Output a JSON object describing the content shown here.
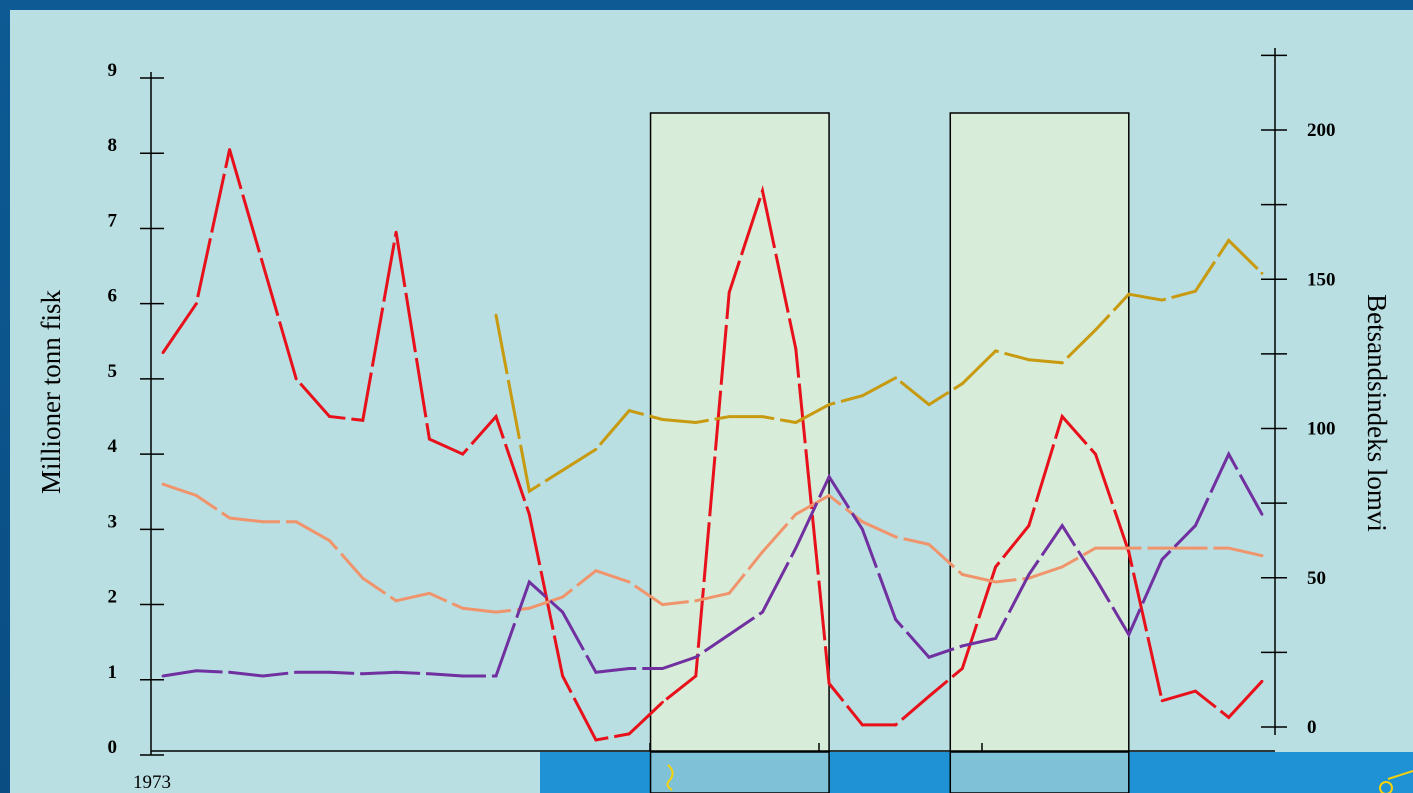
{
  "chart_data": {
    "type": "line",
    "title": "",
    "ylabel": "Millioner  tonn fisk",
    "y2label": "Betsandsindeks lomvi",
    "x_start_label": "1973",
    "ylim": [
      0,
      9
    ],
    "y2lim": [
      0,
      200
    ],
    "yticks": [
      "0",
      "1",
      "2",
      "3",
      "4",
      "5",
      "6",
      "7",
      "8",
      "9"
    ],
    "y2ticks": [
      "0",
      "50",
      "100",
      "150",
      "200"
    ],
    "xlim": [
      1973,
      2006
    ],
    "grid": false,
    "legend": "none",
    "highlight_periods": [
      [
        1988,
        1993
      ],
      [
        1997,
        2002
      ]
    ],
    "series": [
      {
        "color": "#e8101a",
        "axis": "left",
        "x": [
          1973,
          1974,
          1975,
          1977,
          1978,
          1979,
          1980,
          1981,
          1982,
          1983,
          1984,
          1985,
          1986,
          1987,
          1988,
          1989,
          1990,
          1991,
          1992,
          1993,
          1994,
          1995,
          1996,
          1997,
          1998,
          1999,
          2000,
          2001,
          2002,
          2003,
          2004,
          2005,
          2006
        ],
        "y": [
          5.35,
          6.0,
          8.05,
          5.0,
          4.5,
          4.45,
          6.95,
          4.2,
          4.0,
          4.5,
          3.2,
          1.05,
          0.2,
          0.28,
          0.7,
          1.05,
          6.15,
          7.5,
          5.4,
          0.95,
          0.4,
          0.4,
          0.78,
          1.15,
          2.5,
          3.05,
          4.5,
          4.0,
          2.7,
          0.72,
          0.85,
          0.5,
          0.98
        ]
      },
      {
        "color": "#f0946c",
        "axis": "left",
        "x": [
          1973,
          1974,
          1975,
          1976,
          1977,
          1978,
          1979,
          1980,
          1981,
          1982,
          1983,
          1984,
          1985,
          1986,
          1987,
          1988,
          1989,
          1990,
          1991,
          1992,
          1993,
          1994,
          1995,
          1996,
          1997,
          1998,
          1999,
          2000,
          2001,
          2002,
          2003,
          2004,
          2005,
          2006
        ],
        "y": [
          3.6,
          3.45,
          3.15,
          3.1,
          3.1,
          2.85,
          2.35,
          2.05,
          2.15,
          1.95,
          1.9,
          1.95,
          2.1,
          2.45,
          2.3,
          2.0,
          2.05,
          2.15,
          2.7,
          3.2,
          3.45,
          3.1,
          2.9,
          2.8,
          2.4,
          2.3,
          2.35,
          2.5,
          2.75,
          2.75,
          2.75,
          2.75,
          2.75,
          2.65
        ]
      },
      {
        "color": "#7030a0",
        "axis": "left",
        "x": [
          1973,
          1974,
          1975,
          1976,
          1977,
          1978,
          1979,
          1980,
          1981,
          1982,
          1983,
          1984,
          1985,
          1986,
          1987,
          1988,
          1989,
          1990,
          1991,
          1992,
          1993,
          1994,
          1995,
          1996,
          1997,
          1998,
          1999,
          2000,
          2001,
          2002,
          2003,
          2004,
          2005,
          2006
        ],
        "y": [
          1.05,
          1.12,
          1.1,
          1.05,
          1.1,
          1.1,
          1.08,
          1.1,
          1.08,
          1.05,
          1.05,
          2.3,
          1.9,
          1.1,
          1.15,
          1.15,
          1.3,
          1.6,
          1.9,
          2.75,
          3.7,
          3.0,
          1.8,
          1.3,
          1.45,
          1.55,
          2.4,
          3.05,
          2.35,
          1.6,
          2.6,
          3.05,
          4.0,
          3.2
        ]
      },
      {
        "color": "#c89a10",
        "axis": "right",
        "x": [
          1983,
          1984,
          1985,
          1986,
          1987,
          1988,
          1989,
          1990,
          1991,
          1992,
          1993,
          1994,
          1995,
          1996,
          1997,
          1998,
          1999,
          2000,
          2001,
          2002,
          2003,
          2004,
          2005,
          2006
        ],
        "y": [
          138,
          79,
          86,
          93,
          106,
          103,
          102,
          104,
          104,
          102,
          108,
          111,
          117,
          108,
          115,
          126,
          123,
          122,
          133,
          145,
          143,
          146,
          163,
          152
        ]
      }
    ]
  }
}
